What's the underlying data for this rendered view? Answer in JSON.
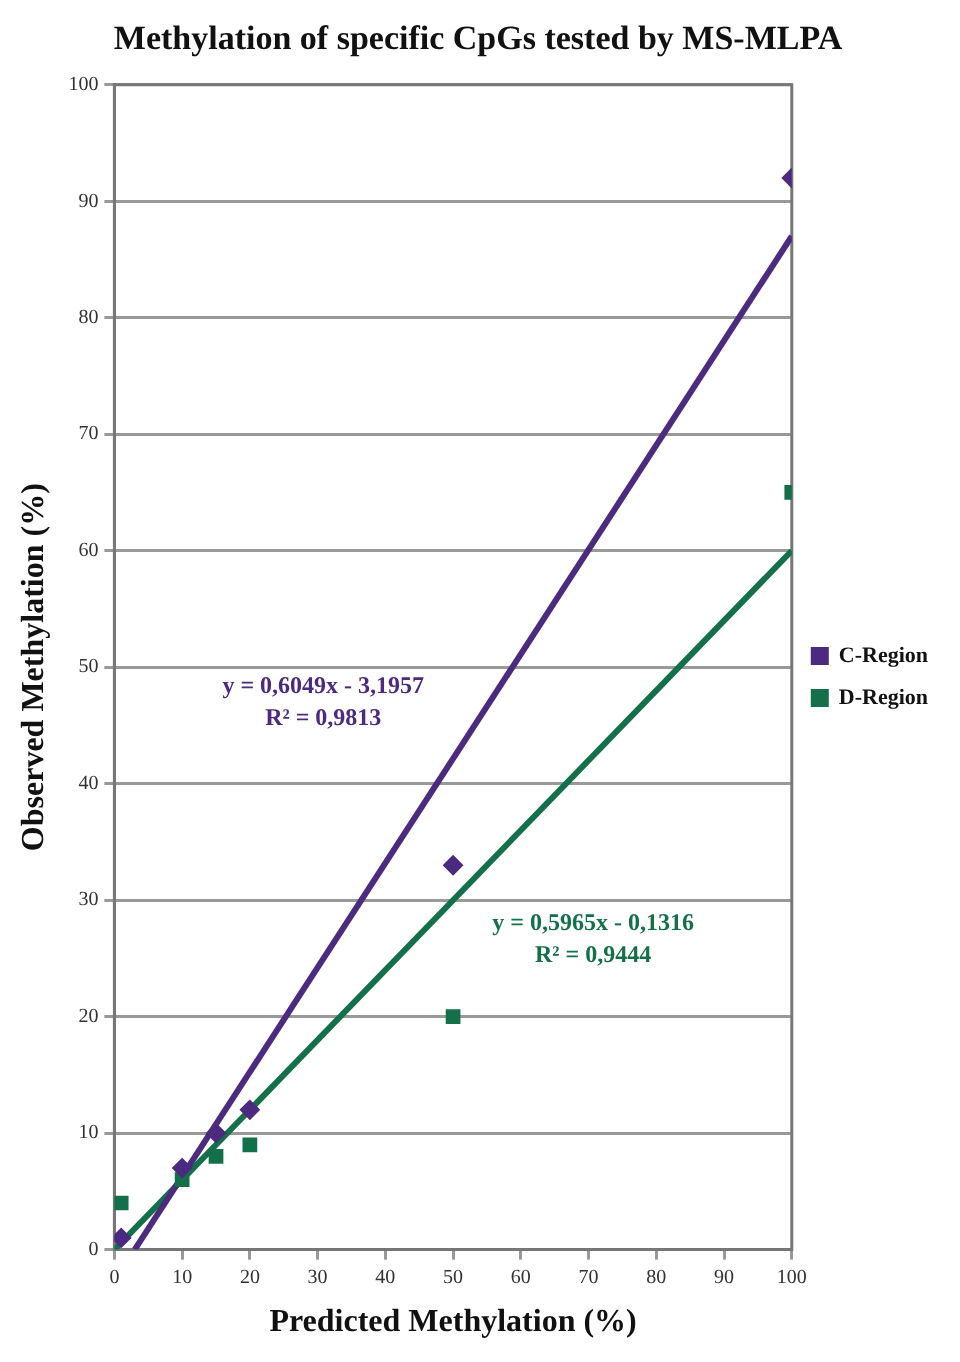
{
  "chart_data": {
    "type": "scatter",
    "title": "Methylation of specific CpGs tested by MS-MLPA",
    "xlabel": "Predicted Methylation (%)",
    "ylabel": "Observed Methylation (%)",
    "xlim": [
      0,
      100
    ],
    "xticks": [
      0,
      10,
      20,
      30,
      40,
      50,
      60,
      70,
      80,
      90,
      100
    ],
    "ylim": [
      0,
      100
    ],
    "yticks": [
      0,
      10,
      20,
      30,
      40,
      50,
      60,
      70,
      80,
      90,
      100
    ],
    "grid": "y",
    "legend": "right",
    "series": [
      {
        "name": "C-Region",
        "color": "#4b2a80",
        "type": "scatter",
        "marker": "diamond",
        "x": [
          1,
          10,
          15,
          20,
          50,
          100
        ],
        "values": [
          1,
          7,
          10,
          12,
          33,
          92
        ]
      },
      {
        "name": "D-Region",
        "color": "#13704a",
        "type": "scatter",
        "marker": "square",
        "x": [
          1,
          10,
          15,
          20,
          50,
          100
        ],
        "values": [
          4,
          6,
          8,
          9,
          20,
          65
        ]
      },
      {
        "color": "#4b2a80",
        "type": "line",
        "marker": "none",
        "x": [
          3,
          100
        ],
        "values": [
          0,
          87
        ]
      },
      {
        "color": "#13704a",
        "type": "line",
        "marker": "none",
        "x": [
          0,
          100
        ],
        "values": [
          0,
          60
        ]
      }
    ],
    "annotations": [
      "y = 0,6049x - 3,1957\nR² = 0,9813",
      "y = 0,5965x - 0,1316\nR² = 0,9444"
    ]
  }
}
